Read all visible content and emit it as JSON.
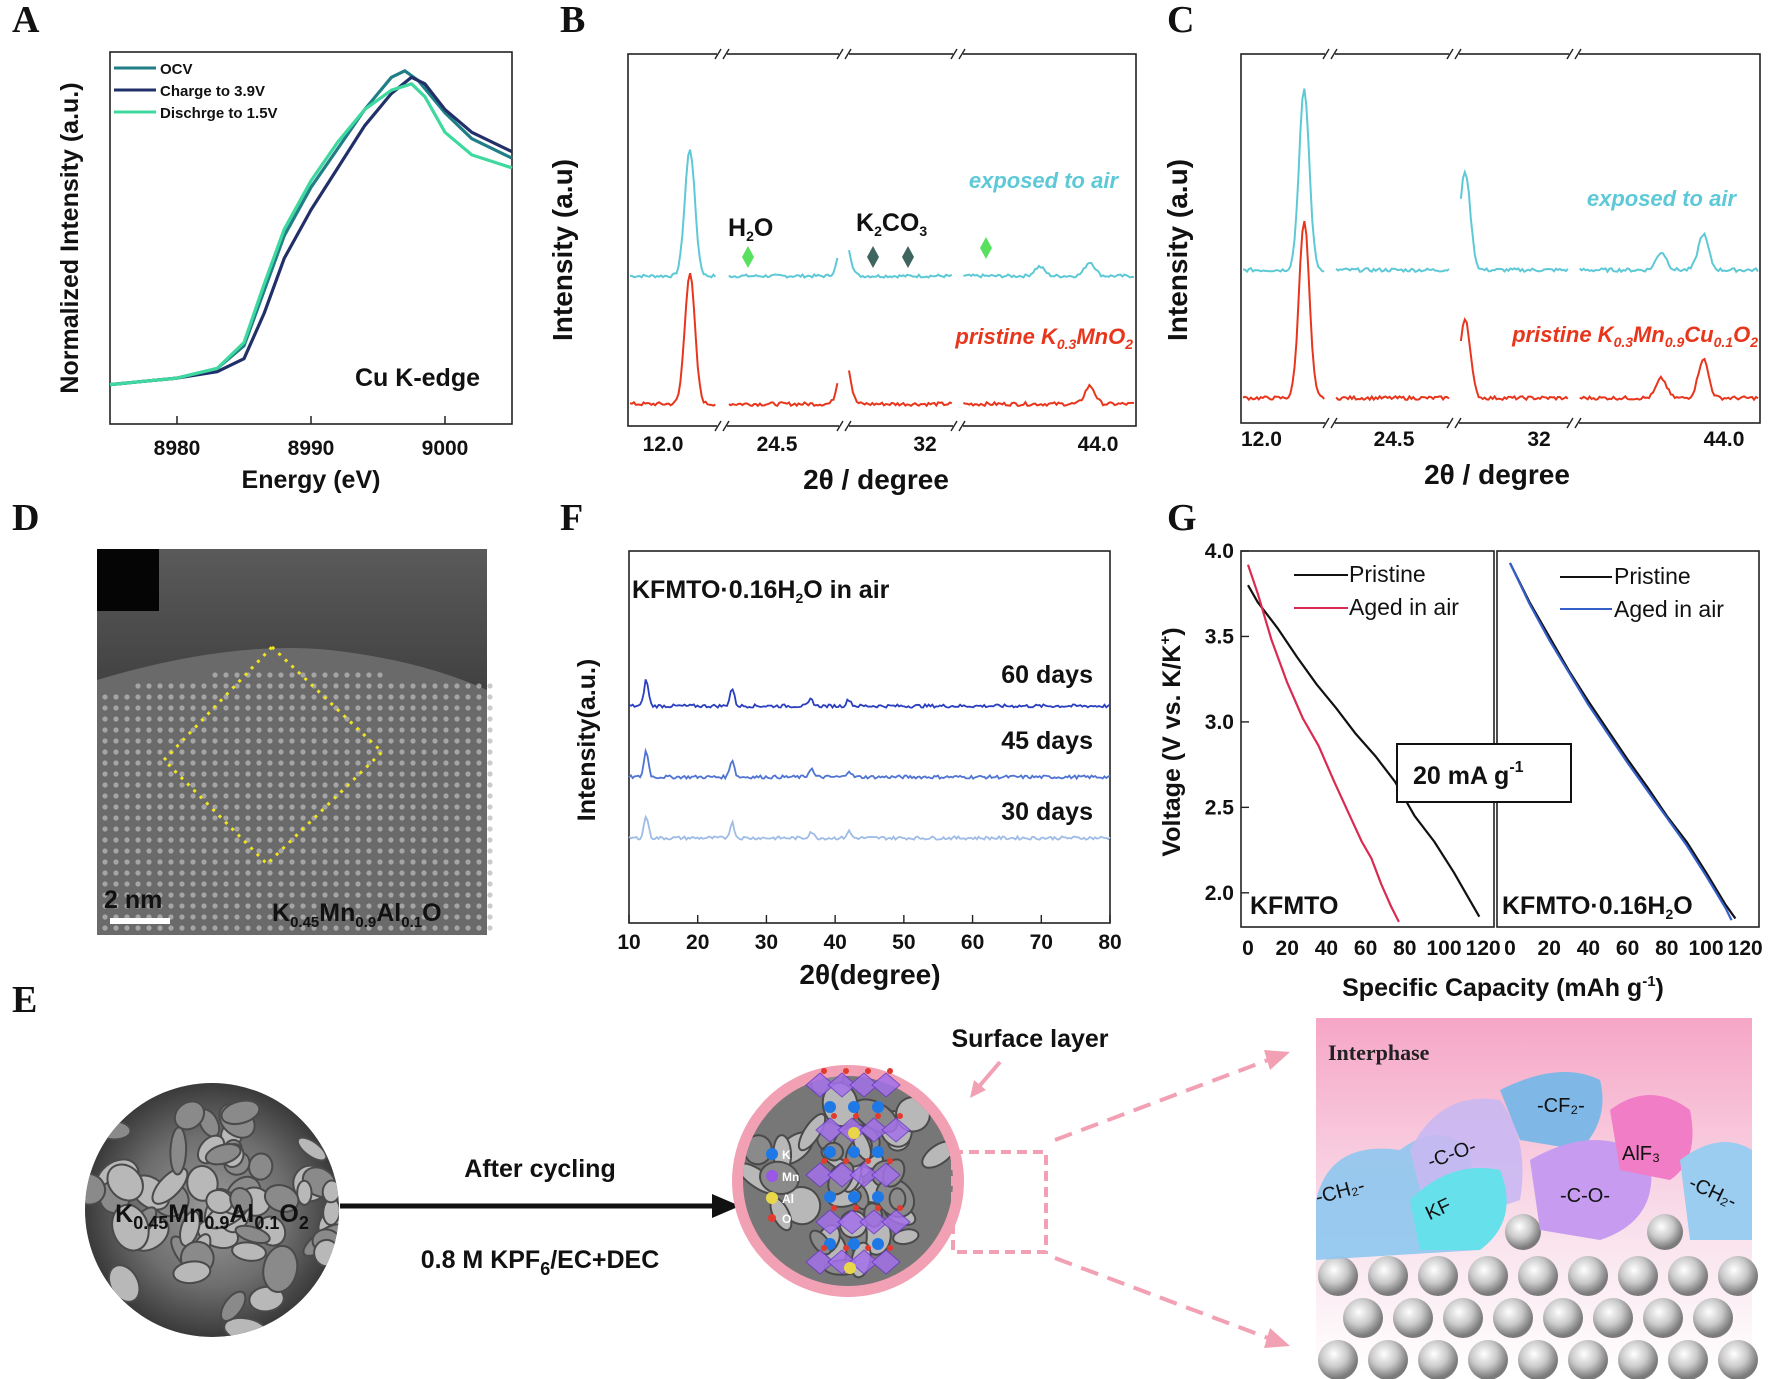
{
  "panel_labels": {
    "a": "A",
    "b": "B",
    "c": "C",
    "d": "D",
    "e": "E",
    "f": "F",
    "g": "G"
  },
  "colors": {
    "ocv": "#1f7e86",
    "charge": "#22306a",
    "discharge": "#3fd9a0",
    "exposed": "#5ec9d6",
    "pristine_red": "#e8361d",
    "days60": "#2a3fbf",
    "days45": "#4f74d2",
    "days30": "#9fbce6",
    "kfmto_pristine": "#111111",
    "kfmto_aged": "#d92a52",
    "h2o_aged": "#3560c9",
    "green_marker": "#58e05e",
    "grey_marker": "#3f6560"
  },
  "chart_data": [
    {
      "panel": "A",
      "type": "line",
      "xlabel": "Energy (eV)",
      "ylabel": "Normalized Intensity (a.u.)",
      "xlim": [
        8975,
        9005
      ],
      "ylim": [
        0,
        1.15
      ],
      "x_ticks": [
        "8980",
        "8990",
        "9000"
      ],
      "annotation": "Cu K-edge",
      "legend_position": "top-left",
      "series": [
        {
          "name": "OCV",
          "color_key": "ocv",
          "x": [
            8975,
            8980,
            8983,
            8985,
            8986.5,
            8988,
            8990,
            8992,
            8994,
            8996,
            8997,
            8998,
            9000,
            9002,
            9005
          ],
          "y": [
            0.06,
            0.08,
            0.11,
            0.18,
            0.35,
            0.52,
            0.67,
            0.79,
            0.91,
            1.01,
            1.03,
            1.0,
            0.9,
            0.82,
            0.76
          ]
        },
        {
          "name": "Charge to 3.9V",
          "color_key": "charge",
          "x": [
            8975,
            8980,
            8983,
            8985,
            8986.5,
            8988,
            8990,
            8992,
            8994,
            8996,
            8997.5,
            8998.5,
            9000,
            9002,
            9005
          ],
          "y": [
            0.06,
            0.08,
            0.1,
            0.14,
            0.28,
            0.45,
            0.6,
            0.73,
            0.86,
            0.96,
            1.01,
            0.99,
            0.91,
            0.84,
            0.78
          ]
        },
        {
          "name": "Dischrge to 1.5V",
          "color_key": "discharge",
          "x": [
            8975,
            8980,
            8983,
            8985,
            8986.5,
            8988,
            8990,
            8992,
            8994,
            8996,
            8997.5,
            8998.5,
            9000,
            9002,
            9005
          ],
          "y": [
            0.06,
            0.08,
            0.11,
            0.19,
            0.37,
            0.54,
            0.69,
            0.81,
            0.91,
            0.97,
            0.99,
            0.95,
            0.84,
            0.77,
            0.73
          ]
        }
      ]
    },
    {
      "panel": "B",
      "type": "line",
      "xlabel": "2θ / degree",
      "ylabel": "Intensity (a.u)",
      "x_ticks": [
        "12.0",
        "24.5",
        "32",
        "44.0"
      ],
      "axis_breaks": true,
      "series": [
        {
          "name": "exposed to air",
          "color_key": "exposed",
          "peaks": [
            {
              "x": 15.8,
              "h": 0.82
            },
            {
              "x": 25.6,
              "h": 0.28
            },
            {
              "x": 41.2,
              "h": 0.09
            },
            {
              "x": 38.0,
              "h": 0.06
            }
          ]
        },
        {
          "name": "pristine K0.3MnO2",
          "color_key": "pristine_red",
          "peaks": [
            {
              "x": 15.8,
              "h": 0.73
            },
            {
              "x": 25.6,
              "h": 0.31
            },
            {
              "x": 41.2,
              "h": 0.1
            }
          ]
        }
      ],
      "markers": [
        {
          "label_main": "H",
          "label_sub": "2",
          "label_end": "O",
          "color_key": "green_marker"
        },
        {
          "label_main": "K",
          "label_sub": "2",
          "label_end": "CO",
          "label_sub2": "3",
          "color_key": "grey_marker"
        }
      ]
    },
    {
      "panel": "C",
      "type": "line",
      "xlabel": "2θ / degree",
      "ylabel": "Intensity (a.u)",
      "x_ticks": [
        "12.0",
        "24.5",
        "32",
        "44.0"
      ],
      "axis_breaks": true,
      "series": [
        {
          "name": "exposed to air",
          "color_key": "exposed",
          "peaks": [
            {
              "x": 15.8,
              "h": 1.0
            },
            {
              "x": 25.8,
              "h": 0.55
            },
            {
              "x": 40.6,
              "h": 0.2
            },
            {
              "x": 38.0,
              "h": 0.1
            }
          ]
        },
        {
          "name": "pristine K0.3Mn0.9Cu0.1O2",
          "color_key": "pristine_red",
          "peaks": [
            {
              "x": 15.8,
              "h": 1.0
            },
            {
              "x": 25.8,
              "h": 0.45
            },
            {
              "x": 40.6,
              "h": 0.22
            },
            {
              "x": 38.0,
              "h": 0.11
            }
          ]
        }
      ]
    },
    {
      "panel": "F",
      "type": "line",
      "xlabel": "2θ(degree)",
      "ylabel": "Intensity(a.u.)",
      "xlim": [
        10,
        80
      ],
      "x_ticks": [
        "10",
        "20",
        "30",
        "40",
        "50",
        "60",
        "70",
        "80"
      ],
      "title": "KFMTO·0.16H₂O in air",
      "series": [
        {
          "name": "60 days",
          "color_key": "days60",
          "peaks": [
            {
              "x": 12.5,
              "h": 0.12
            },
            {
              "x": 25.0,
              "h": 0.08
            },
            {
              "x": 36.5,
              "h": 0.03
            },
            {
              "x": 42.0,
              "h": 0.03
            }
          ]
        },
        {
          "name": "45 days",
          "color_key": "days45",
          "peaks": [
            {
              "x": 12.5,
              "h": 0.12
            },
            {
              "x": 25.0,
              "h": 0.08
            },
            {
              "x": 36.5,
              "h": 0.04
            },
            {
              "x": 42.0,
              "h": 0.03
            }
          ]
        },
        {
          "name": "30 days",
          "color_key": "days30",
          "peaks": [
            {
              "x": 12.5,
              "h": 0.1
            },
            {
              "x": 25.0,
              "h": 0.07
            },
            {
              "x": 36.5,
              "h": 0.03
            },
            {
              "x": 42.0,
              "h": 0.03
            }
          ]
        }
      ]
    },
    {
      "panel": "G",
      "type": "line",
      "xlabel": "Specific Capacity (mAh g-1)",
      "ylabel": "Voltage (V vs. K/K+)",
      "ylim": [
        1.8,
        4.0
      ],
      "y_ticks": [
        "2.0",
        "2.5",
        "3.0",
        "3.5",
        "4.0"
      ],
      "x_ticks_left": [
        "0",
        "20",
        "40",
        "60",
        "80",
        "100",
        "120"
      ],
      "x_ticks_right": [
        "0",
        "20",
        "40",
        "60",
        "80",
        "100",
        "120"
      ],
      "annotation": "20 mA g-1",
      "subplots": [
        {
          "label": "KFMTO",
          "xlim": [
            0,
            125
          ],
          "series": [
            {
              "name": "Pristine",
              "color_key": "kfmto_pristine",
              "x": [
                0,
                5,
                15,
                25,
                35,
                45,
                55,
                65,
                75,
                85,
                95,
                105,
                112,
                118
              ],
              "y": [
                3.8,
                3.7,
                3.55,
                3.38,
                3.22,
                3.08,
                2.93,
                2.8,
                2.65,
                2.45,
                2.3,
                2.12,
                1.98,
                1.86
              ]
            },
            {
              "name": "Aged in air",
              "color_key": "kfmto_aged",
              "x": [
                0,
                5,
                12,
                20,
                28,
                36,
                44,
                52,
                58,
                63,
                68,
                73,
                77
              ],
              "y": [
                3.92,
                3.75,
                3.48,
                3.23,
                3.02,
                2.86,
                2.65,
                2.45,
                2.3,
                2.2,
                2.05,
                1.92,
                1.83
              ]
            }
          ]
        },
        {
          "label": "KFMTO·0.16H₂O",
          "xlim": [
            0,
            125
          ],
          "series": [
            {
              "name": "Pristine",
              "color_key": "kfmto_pristine",
              "x": [
                0,
                10,
                20,
                30,
                40,
                50,
                60,
                70,
                80,
                90,
                100,
                110,
                115
              ],
              "y": [
                3.93,
                3.7,
                3.5,
                3.3,
                3.12,
                2.95,
                2.78,
                2.62,
                2.45,
                2.3,
                2.12,
                1.93,
                1.85
              ]
            },
            {
              "name": "Aged in air",
              "color_key": "h2o_aged",
              "x": [
                0,
                10,
                20,
                30,
                40,
                50,
                60,
                70,
                80,
                90,
                100,
                110,
                113
              ],
              "y": [
                3.93,
                3.69,
                3.48,
                3.29,
                3.1,
                2.93,
                2.76,
                2.6,
                2.44,
                2.28,
                2.1,
                1.91,
                1.84
              ]
            }
          ]
        }
      ]
    }
  ],
  "panel_a": {
    "legend": [
      "OCV",
      "Charge to 3.9V",
      "Dischrge to 1.5V"
    ],
    "annotation": "Cu K-edge",
    "xlabel": "Energy (eV)",
    "ylabel": "Normalized Intensity (a.u.)"
  },
  "panel_b": {
    "exposed": "exposed to air",
    "pristine_prefix": "pristine K",
    "pristine_sub1": "0.3",
    "pristine_mid": "MnO",
    "pristine_sub2": "2",
    "xlabel": "2θ / degree",
    "ylabel": "Intensity (a.u)"
  },
  "panel_c": {
    "exposed": "exposed to air",
    "pristine_prefix": "pristine K",
    "sub1": "0.3",
    "mid1": "Mn",
    "sub2": "0.9",
    "mid2": "Cu",
    "sub3": "0.1",
    "mid3": "O",
    "sub4": "2",
    "xlabel": "2θ / degree",
    "ylabel": "Intensity (a.u)"
  },
  "panel_d": {
    "scale": "2 nm",
    "formula_k": "K",
    "sub1": "0.45",
    "mn": "Mn",
    "sub2": "0.9",
    "al": "Al",
    "sub3": "0.1",
    "o": "O"
  },
  "panel_f": {
    "title_pre": "KFMTO·0.16H",
    "title_sub": "2",
    "title_post": "O in air",
    "labels": [
      "60 days",
      "45 days",
      "30 days"
    ],
    "xlabel": "2θ(degree)",
    "ylabel": "Intensity(a.u.)"
  },
  "panel_g": {
    "legend_left": [
      "Pristine",
      "Aged in air"
    ],
    "legend_right": [
      "Pristine",
      "Aged in air"
    ],
    "label_left": "KFMTO",
    "label_right_pre": "KFMTO·0.16H",
    "label_right_sub": "2",
    "label_right_post": "O",
    "rate_pre": "20 mA g",
    "rate_sup": "-1",
    "ylabel_pre": "Voltage (V vs. K/K",
    "ylabel_sup": "+",
    "ylabel_post": ")",
    "xlabel_pre": "Specific Capacity (mAh g",
    "xlabel_sup": "-1",
    "xlabel_post": ")"
  },
  "panel_e": {
    "formula_k": "K",
    "sub1": "0.45",
    "mn": "Mn",
    "sub2": "0.9",
    "al": "Al",
    "sub3": "0.1",
    "o": "O",
    "sub4": "2",
    "arrow_top": "After cycling",
    "electrolyte_pre": "0.8 M KPF",
    "electrolyte_sub": "6",
    "electrolyte_post": "/EC+DEC",
    "surface_layer": "Surface layer",
    "atom_legend": [
      "K",
      "Mn",
      "Al",
      "O"
    ],
    "interphase": "Interphase",
    "species": [
      "-CF₂-",
      "-C-O-",
      "AlF₃",
      "-C-O-",
      "KF",
      "-CH₂-",
      "-CH₂-"
    ]
  }
}
